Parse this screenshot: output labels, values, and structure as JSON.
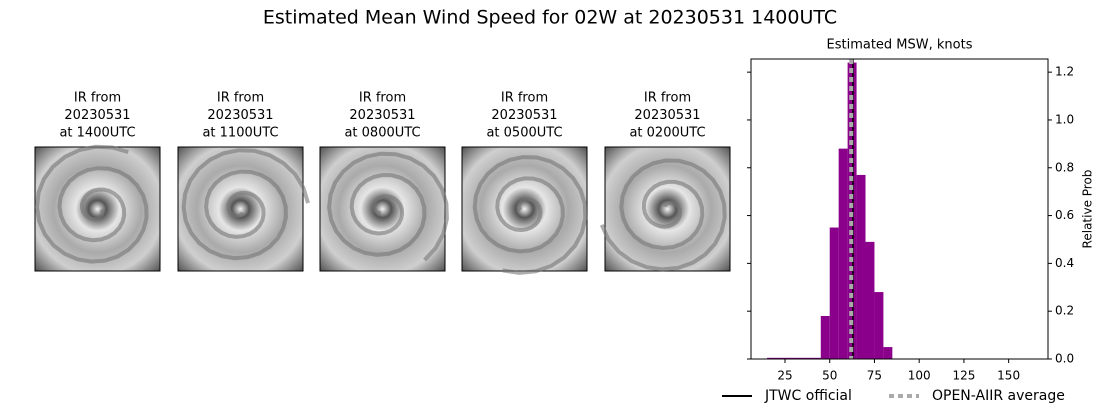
{
  "title": "Estimated Mean Wind Speed for 02W at 20230531 1400UTC",
  "panels": [
    {
      "title": [
        "IR from",
        "20230531",
        "at 1400UTC"
      ]
    },
    {
      "title": [
        "IR from",
        "20230531",
        "at 1100UTC"
      ]
    },
    {
      "title": [
        "IR from",
        "20230531",
        "at 0800UTC"
      ]
    },
    {
      "title": [
        "IR from",
        "20230531",
        "at 0500UTC"
      ]
    },
    {
      "title": [
        "IR from",
        "20230531",
        "at 0200UTC"
      ]
    }
  ],
  "chart_data": {
    "type": "histogram",
    "title": "Estimated MSW, knots",
    "ylabel": "Relative Prob",
    "color": "#8b008b",
    "bins": [
      15,
      45,
      50,
      55,
      60,
      65,
      70,
      75,
      80,
      85,
      170
    ],
    "values": [
      0.005,
      0.18,
      0.55,
      0.88,
      1.24,
      0.77,
      0.49,
      0.28,
      0.05,
      0.002
    ],
    "xlim": [
      6,
      172
    ],
    "xticks": [
      25,
      50,
      75,
      100,
      125,
      150
    ],
    "ylim": [
      0,
      1.255
    ],
    "yticks": [
      {
        "value": 0,
        "label": "0.0"
      },
      {
        "value": 0.2,
        "label": "0.2"
      },
      {
        "value": 0.4,
        "label": "0.4"
      },
      {
        "value": 0.6,
        "label": "0.6"
      },
      {
        "value": 0.8,
        "label": "0.8"
      },
      {
        "value": 1.0,
        "label": "1.0"
      },
      {
        "value": 1.2,
        "label": "1.2"
      }
    ],
    "lines": [
      {
        "name": "JTWC official",
        "x": 63,
        "color": "#000000",
        "style": "solid"
      },
      {
        "name": "OPEN-AIIR average",
        "x": 62,
        "color": "#aaaaaa",
        "style": "dashed"
      }
    ]
  }
}
